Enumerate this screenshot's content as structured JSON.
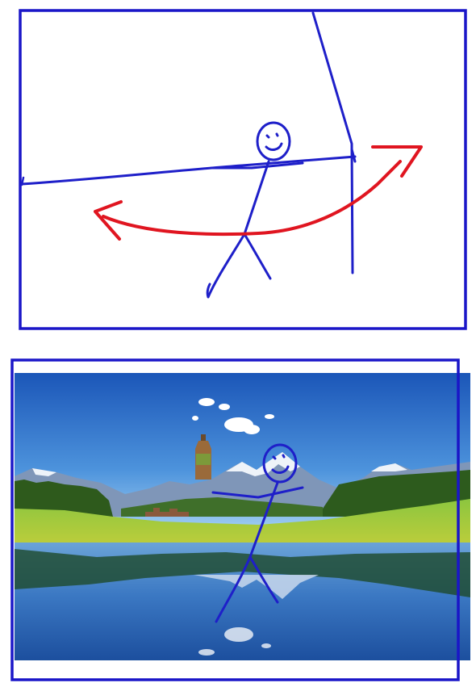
{
  "colors": {
    "frame": "#1a16c8",
    "stick_figure": "#1e1fc9",
    "arrow": "#e01520",
    "sky_top": "#1f5fbf",
    "sky_horizon": "#7fb8ea",
    "meadow": "#7fb832",
    "forest": "#2e5a1c",
    "lake": "#2b63b0",
    "bottle": "#8b5a2b",
    "bottle_label": "#6b8e23"
  },
  "icons": {
    "stick_figure_top": "stick-figure-icon",
    "stick_figure_bottom": "stick-figure-icon",
    "rotation_arrow": "double-headed-arrow-icon",
    "bottle": "bottle-icon"
  }
}
